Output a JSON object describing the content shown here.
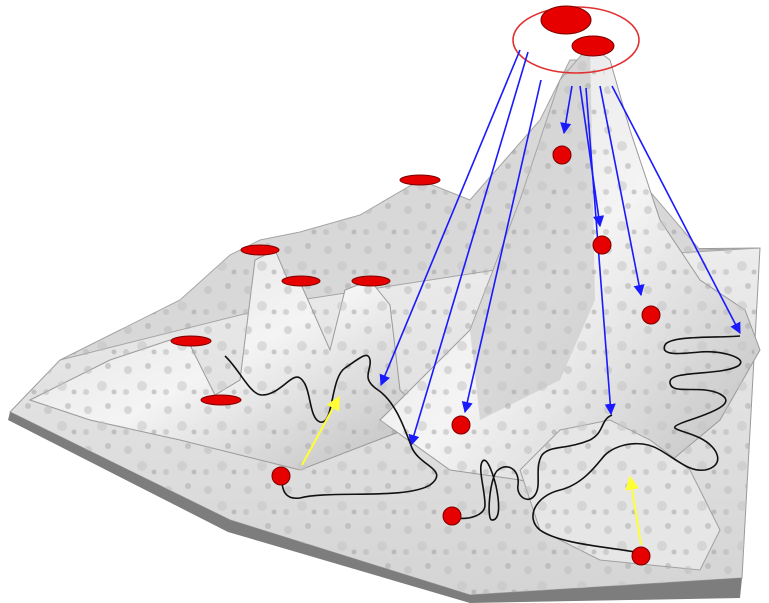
{
  "diagram": {
    "description_type": "fitness-landscape",
    "colors": {
      "background": "#ffffff",
      "surface_light": "#f2f2f2",
      "surface_mid": "#c9c9c9",
      "surface_dark": "#8e8e8e",
      "marker_fill": "#e60000",
      "marker_stroke": "#7a0000",
      "highlight_ring": "#e03030",
      "jump_arrow": "#1a1aff",
      "step_arrow": "#ffff33",
      "search_path": "#111111"
    },
    "marker_count": 16,
    "jump_arrow_count": 8,
    "step_arrow_count": 2,
    "search_path_count": 3
  }
}
